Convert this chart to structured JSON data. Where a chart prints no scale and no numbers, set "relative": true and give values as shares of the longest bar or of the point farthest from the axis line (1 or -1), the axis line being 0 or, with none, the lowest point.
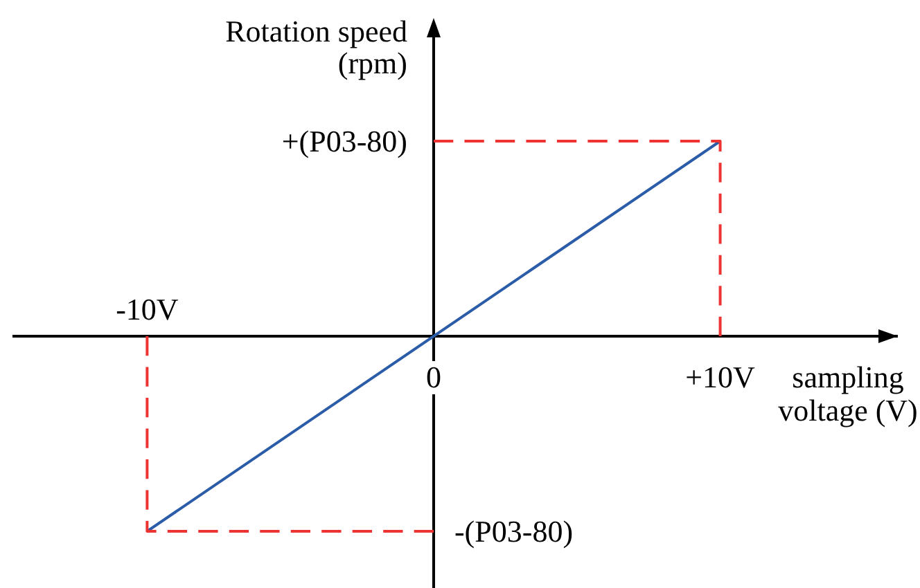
{
  "chart_data": {
    "type": "line",
    "relative": true,
    "xlabel": "sampling voltage (V)",
    "ylabel": "Rotation speed (rpm)",
    "xlim": [
      -14.7,
      16.2
    ],
    "xticks": [
      0,
      {
        "value": 10,
        "label": "+10V"
      }
    ],
    "series": [
      {
        "color": "#2b5ca8",
        "x": [
          -10,
          10
        ],
        "values": [
          -1,
          1
        ]
      },
      {
        "color": "#ee3333",
        "x": [
          0,
          10,
          10
        ],
        "values": [
          1,
          1,
          0
        ],
        "line_style": "dashed"
      },
      {
        "color": "#ee3333",
        "x": [
          -10,
          -10,
          0
        ],
        "values": [
          0,
          -1,
          -1
        ],
        "line_style": "dashed"
      }
    ],
    "annotations": [
      "+(P03-80)",
      "-(P03-80)",
      "-10V"
    ]
  }
}
